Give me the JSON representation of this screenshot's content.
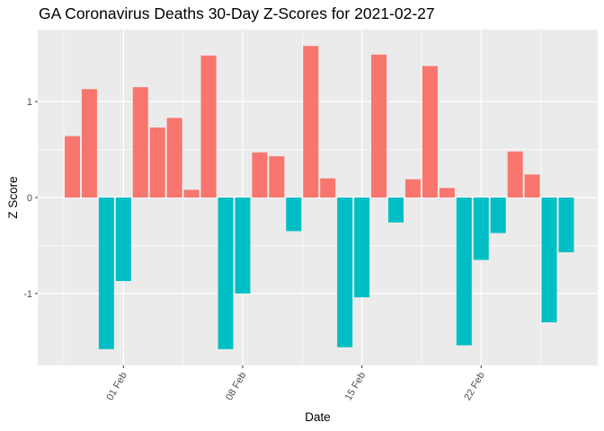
{
  "chart_data": {
    "type": "bar",
    "title": "GA Coronavirus Deaths 30-Day Z-Scores for 2021-02-27",
    "xlabel": "Date",
    "ylabel": "Z Score",
    "ylim": [
      -1.75,
      1.75
    ],
    "y_ticks": [
      -1,
      0,
      1
    ],
    "y_tick_labels": [
      "-1",
      "0",
      "1"
    ],
    "x_ticks": [
      {
        "label": "01 Feb",
        "index": 3.5
      },
      {
        "label": "08 Feb",
        "index": 10.5
      },
      {
        "label": "15 Feb",
        "index": 17.5
      },
      {
        "label": "22 Feb",
        "index": 24.5
      }
    ],
    "positive_color": "#F8766D",
    "negative_color": "#00BFC4",
    "panel_color": "#EBEBEB",
    "grid": true,
    "legend": "none",
    "values": [
      0.64,
      1.13,
      -1.58,
      -0.87,
      1.15,
      0.73,
      0.83,
      0.08,
      1.48,
      -1.58,
      -1.0,
      0.47,
      0.43,
      -0.35,
      1.58,
      0.2,
      -1.56,
      -1.04,
      1.49,
      -0.26,
      0.19,
      1.37,
      0.1,
      -1.54,
      -0.65,
      -0.37,
      0.48,
      0.24,
      -1.3,
      -0.57
    ]
  }
}
